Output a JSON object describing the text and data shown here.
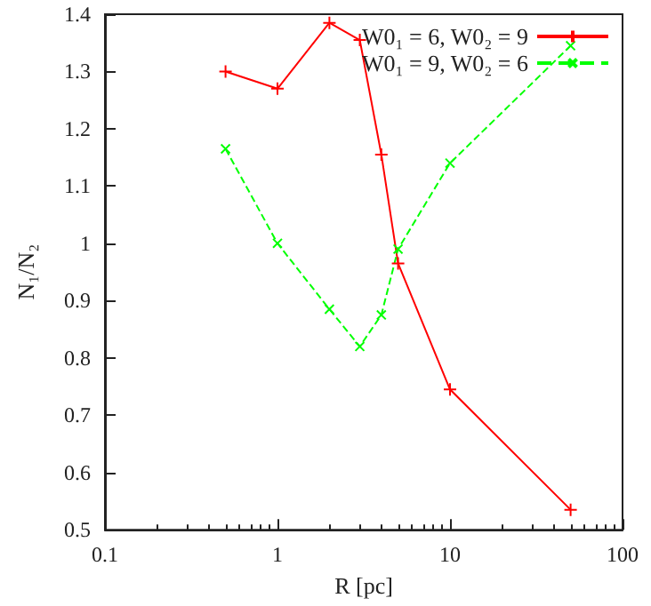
{
  "chart_data": {
    "type": "line",
    "xlabel": "R [pc]",
    "ylabel": "N₁/N₂",
    "x": [
      0.5,
      1,
      2,
      3,
      4,
      5,
      10,
      50
    ],
    "series": [
      {
        "name": "W0₁ = 6, W0₂ = 9",
        "color": "#ff0000",
        "line_style": "solid",
        "values": [
          1.3,
          1.27,
          1.385,
          1.355,
          1.155,
          0.965,
          0.745,
          0.535
        ]
      },
      {
        "name": "W0₁ = 9, W0₂ = 6",
        "color": "#00ff00",
        "line_style": "dashed",
        "values": [
          1.165,
          1.0,
          0.885,
          0.82,
          0.875,
          0.99,
          1.14,
          1.345
        ]
      }
    ],
    "xlim": [
      0.1,
      100
    ],
    "xticks": [
      0.1,
      1,
      10,
      100
    ],
    "ylim": [
      0.5,
      1.4
    ],
    "yticks": [
      0.5,
      0.6,
      0.7,
      0.8,
      0.9,
      1,
      1.1,
      1.2,
      1.3,
      1.4
    ],
    "log": "x",
    "grid": false,
    "legend": "top right",
    "marker": "cross"
  }
}
